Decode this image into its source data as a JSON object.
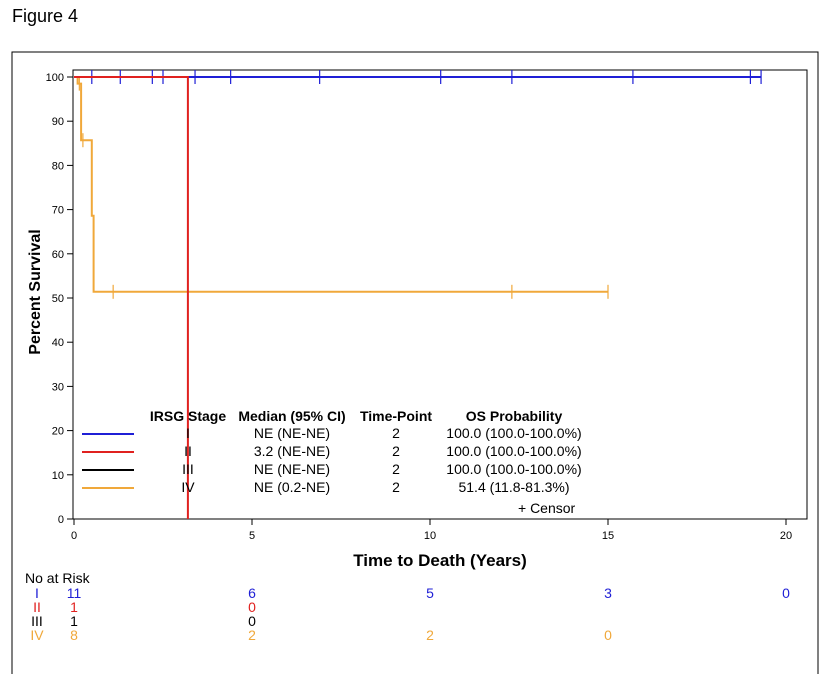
{
  "figure_title": "Figure 4",
  "colors": {
    "I": "#1f1fd6",
    "II": "#e0211f",
    "III": "#000000",
    "IV": "#f0a83a"
  },
  "chart_data": {
    "type": "line",
    "subtype": "kaplan-meier step",
    "xlabel": "Time to Death (Years)",
    "ylabel": "Percent Survival",
    "xlim": [
      0,
      20
    ],
    "ylim": [
      0,
      100
    ],
    "xticks": [
      0,
      5,
      10,
      15,
      20
    ],
    "yticks": [
      0,
      10,
      20,
      30,
      40,
      50,
      60,
      70,
      80,
      90,
      100
    ],
    "grid": false,
    "series": [
      {
        "name": "I",
        "color": "#1f1fd6",
        "steps": [
          [
            0,
            100
          ],
          [
            19.3,
            100
          ]
        ],
        "censors": [
          [
            0.5,
            100
          ],
          [
            1.3,
            100
          ],
          [
            2.2,
            100
          ],
          [
            2.5,
            100
          ],
          [
            3.4,
            100
          ],
          [
            4.4,
            100
          ],
          [
            6.9,
            100
          ],
          [
            10.3,
            100
          ],
          [
            12.3,
            100
          ],
          [
            15.7,
            100
          ],
          [
            19.0,
            100
          ],
          [
            19.3,
            100
          ]
        ]
      },
      {
        "name": "II",
        "color": "#e0211f",
        "steps": [
          [
            0,
            100
          ],
          [
            3.2,
            100
          ],
          [
            3.2,
            0
          ]
        ],
        "censors": []
      },
      {
        "name": "III",
        "color": "#000000",
        "steps": [
          [
            0,
            100
          ],
          [
            3.2,
            100
          ]
        ],
        "censors": []
      },
      {
        "name": "IV",
        "color": "#f0a83a",
        "steps": [
          [
            0,
            100
          ],
          [
            0.1,
            100
          ],
          [
            0.1,
            98.5
          ],
          [
            0.2,
            98.5
          ],
          [
            0.2,
            85.7
          ],
          [
            0.5,
            85.7
          ],
          [
            0.5,
            68.6
          ],
          [
            0.55,
            68.6
          ],
          [
            0.55,
            51.4
          ],
          [
            15.0,
            51.4
          ]
        ],
        "censors": [
          [
            0.15,
            98.5
          ],
          [
            0.25,
            85.7
          ],
          [
            1.1,
            51.4
          ],
          [
            12.3,
            51.4
          ],
          [
            15.0,
            51.4
          ]
        ]
      }
    ],
    "legend": {
      "placement": "bottom-center",
      "headers": [
        "IRSG Stage",
        "Median (95% CI)",
        "Time-Point",
        "OS Probability"
      ],
      "rows": [
        {
          "key": "I",
          "stage": "I",
          "median": "NE (NE-NE)",
          "timepoint": "2",
          "os": "100.0 (100.0-100.0%)"
        },
        {
          "key": "II",
          "stage": "II",
          "median": "3.2 (NE-NE)",
          "timepoint": "2",
          "os": "100.0 (100.0-100.0%)"
        },
        {
          "key": "III",
          "stage": "III",
          "median": "NE (NE-NE)",
          "timepoint": "2",
          "os": "100.0 (100.0-100.0%)"
        },
        {
          "key": "IV",
          "stage": "IV",
          "median": "NE (0.2-NE)",
          "timepoint": "2",
          "os": "51.4 (11.8-81.3%)"
        }
      ],
      "censor_label": "+ Censor"
    },
    "risk_table": {
      "title": "No at Risk",
      "times": [
        0,
        5,
        10,
        15,
        20
      ],
      "rows": [
        {
          "key": "I",
          "label": "I",
          "counts": [
            "11",
            "6",
            "5",
            "3",
            "0"
          ]
        },
        {
          "key": "II",
          "label": "II",
          "counts": [
            "1",
            "0",
            "",
            "",
            ""
          ]
        },
        {
          "key": "III",
          "label": "III",
          "counts": [
            "1",
            "0",
            "",
            "",
            ""
          ]
        },
        {
          "key": "IV",
          "label": "IV",
          "counts": [
            "8",
            "2",
            "2",
            "0",
            ""
          ]
        }
      ]
    }
  }
}
